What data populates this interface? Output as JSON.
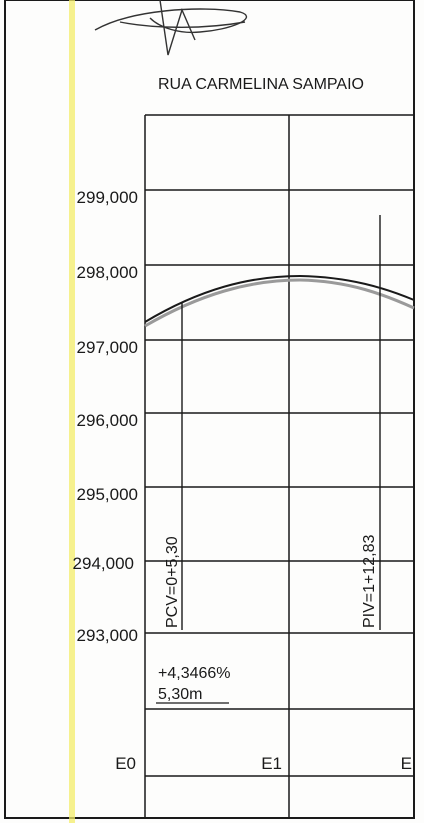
{
  "title": "RUA CARMELINA SAMPAIO",
  "elevations": [
    "299,000",
    "298,000",
    "297,000",
    "296,000",
    "295,000",
    "294,000",
    "293,000"
  ],
  "stations": [
    "E0",
    "E1",
    "E"
  ],
  "pcv_label": "PCV=0+5,30",
  "piv_label": "PIV=1+12,83",
  "grade": "+4,3466%",
  "length": "5,30m",
  "colors": {
    "ink": "#1a1a1a",
    "highlight": "#f3ec6a",
    "curve_shadow": "#9a9a9a"
  }
}
